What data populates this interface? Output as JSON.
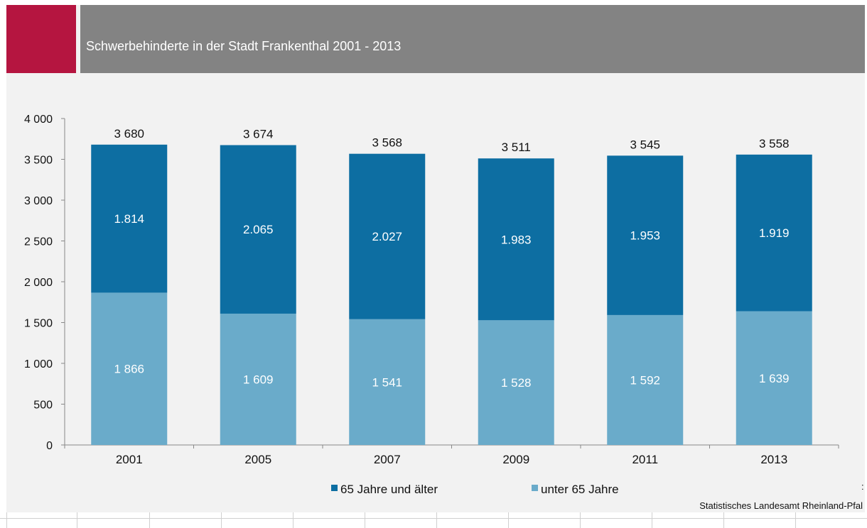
{
  "chart_data": {
    "type": "bar",
    "stacked": true,
    "title": "Schwerbehinderte  in der Stadt Frankenthal  2001 - 2013",
    "categories": [
      "2001",
      "2005",
      "2007",
      "2009",
      "2011",
      "2013"
    ],
    "series": [
      {
        "name": "unter 65 Jahre",
        "values": [
          1866,
          1609,
          1541,
          1528,
          1592,
          1639
        ],
        "labels": [
          "1 866",
          "1 609",
          "1 541",
          "1 528",
          "1 592",
          "1 639"
        ],
        "color": "#6aabca"
      },
      {
        "name": "65 Jahre und älter",
        "values": [
          1814,
          2065,
          2027,
          1983,
          1953,
          1919
        ],
        "labels": [
          "1.814",
          "2.065",
          "2.027",
          "1.983",
          "1.953",
          "1.919"
        ],
        "color": "#0d6ea2"
      }
    ],
    "totals": [
      3680,
      3674,
      3568,
      3511,
      3545,
      3558
    ],
    "total_labels": [
      "3 680",
      "3 674",
      "3 568",
      "3 511",
      "3 545",
      "3 558"
    ],
    "ylim": [
      0,
      4000
    ],
    "yticks": [
      0,
      500,
      1000,
      1500,
      2000,
      2500,
      3000,
      3500,
      4000
    ],
    "ytick_labels": [
      "0",
      "500",
      "1 000",
      "1 500",
      "2 000",
      "2 500",
      "3 000",
      "3 500",
      "4 000"
    ],
    "legend_position": "bottom",
    "grid": false
  },
  "source": "Statistisches  Landesamt  Rheinland-Pfal",
  "stray_mark": ":"
}
